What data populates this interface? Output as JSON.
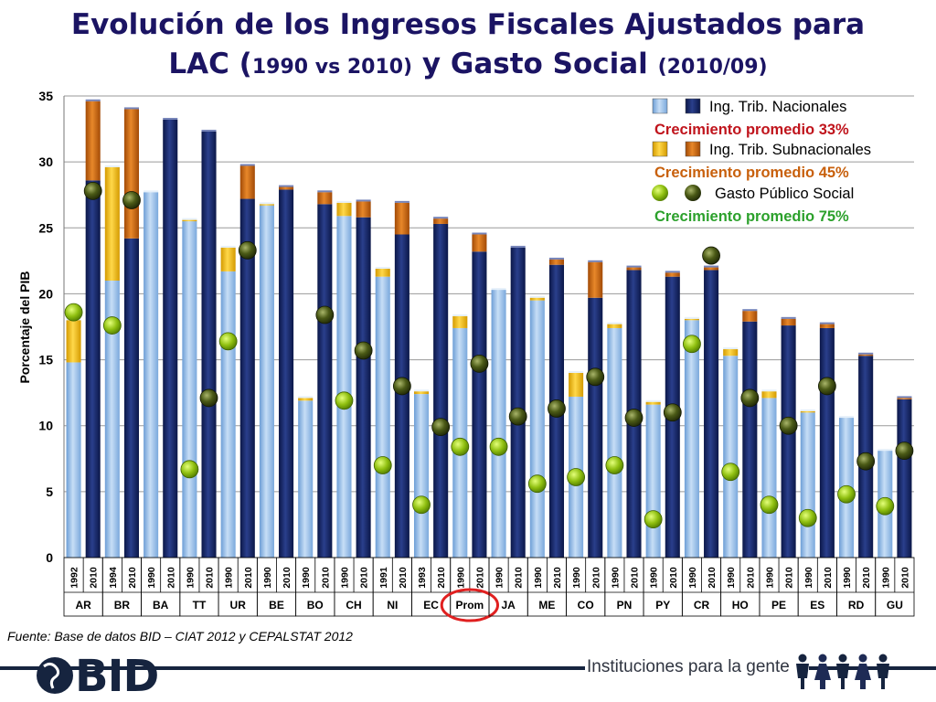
{
  "title": {
    "line1": "Evolución de los Ingresos Fiscales Ajustados para",
    "line2_a": "LAC (",
    "line2_b": "1990 vs 2010)",
    "line2_c": " y Gasto Social ",
    "line2_d": "(2010/09)"
  },
  "source": "Fuente: Base de datos BID – CIAT 2012 y CEPALSTAT 2012",
  "logo": "BID",
  "tagline": "Instituciones para la gente",
  "colors": {
    "nacional_early": "#9dc3ea",
    "nacional_2010": "#13235f",
    "subnacional_early": "#f0b400",
    "subnacional_2010": "#c8600c",
    "gasto_early": "#8fbf10",
    "gasto_2010": "#4b5a16",
    "highlight": "#e02020",
    "grid": "#9a9a9a",
    "footer": "#16243f"
  },
  "chart_data": {
    "type": "bar",
    "stacked": true,
    "ylabel": "Porcentaje del PIB",
    "ylim": [
      0,
      35
    ],
    "yticks": [
      0,
      5,
      10,
      15,
      20,
      25,
      30,
      35
    ],
    "grid": true,
    "legend_position": "top-right",
    "highlighted_group": "Prom",
    "groups": [
      {
        "name": "AR",
        "years": [
          "1992",
          "2010"
        ],
        "nacional": [
          14.8,
          28.6
        ],
        "subnacional": [
          3.2,
          6.0
        ],
        "gasto": [
          18.6,
          27.8
        ]
      },
      {
        "name": "BR",
        "years": [
          "1994",
          "2010"
        ],
        "nacional": [
          21.0,
          24.2
        ],
        "subnacional": [
          8.6,
          9.8
        ],
        "gasto": [
          17.6,
          27.1
        ]
      },
      {
        "name": "BA",
        "years": [
          "1990",
          "2010"
        ],
        "nacional": [
          27.7,
          33.2
        ],
        "subnacional": [
          0,
          0
        ],
        "gasto": [
          null,
          null
        ]
      },
      {
        "name": "TT",
        "years": [
          "1990",
          "2010"
        ],
        "nacional": [
          25.5,
          32.3
        ],
        "subnacional": [
          0.1,
          0
        ],
        "gasto": [
          6.7,
          12.1
        ]
      },
      {
        "name": "UR",
        "years": [
          "1990",
          "2010"
        ],
        "nacional": [
          21.7,
          27.2
        ],
        "subnacional": [
          1.8,
          2.5
        ],
        "gasto": [
          16.4,
          23.3
        ]
      },
      {
        "name": "BE",
        "years": [
          "1990",
          "2010"
        ],
        "nacional": [
          26.7,
          27.9
        ],
        "subnacional": [
          0.1,
          0.2
        ],
        "gasto": [
          null,
          null
        ]
      },
      {
        "name": "BO",
        "years": [
          "1990",
          "2010"
        ],
        "nacional": [
          11.9,
          26.8
        ],
        "subnacional": [
          0.2,
          0.9
        ],
        "gasto": [
          null,
          18.4
        ]
      },
      {
        "name": "CH",
        "years": [
          "1990",
          "2010"
        ],
        "nacional": [
          25.9,
          25.8
        ],
        "subnacional": [
          1.0,
          1.2
        ],
        "gasto": [
          11.9,
          15.7
        ]
      },
      {
        "name": "NI",
        "years": [
          "1991",
          "2010"
        ],
        "nacional": [
          21.3,
          24.5
        ],
        "subnacional": [
          0.6,
          2.4
        ],
        "gasto": [
          7.0,
          13.0
        ]
      },
      {
        "name": "EC",
        "years": [
          "1993",
          "2010"
        ],
        "nacional": [
          12.4,
          25.3
        ],
        "subnacional": [
          0.2,
          0.4
        ],
        "gasto": [
          4.0,
          9.9
        ]
      },
      {
        "name": "Prom",
        "years": [
          "1990",
          "2010"
        ],
        "nacional": [
          17.4,
          23.2
        ],
        "subnacional": [
          0.9,
          1.3
        ],
        "gasto": [
          8.4,
          14.7
        ]
      },
      {
        "name": "JA",
        "years": [
          "1990",
          "2010"
        ],
        "nacional": [
          20.3,
          23.5
        ],
        "subnacional": [
          0,
          0
        ],
        "gasto": [
          8.4,
          10.7
        ]
      },
      {
        "name": "ME",
        "years": [
          "1990",
          "2010"
        ],
        "nacional": [
          19.5,
          22.2
        ],
        "subnacional": [
          0.2,
          0.4
        ],
        "gasto": [
          5.6,
          11.3
        ]
      },
      {
        "name": "CO",
        "years": [
          "1990",
          "2010"
        ],
        "nacional": [
          12.2,
          19.7
        ],
        "subnacional": [
          1.8,
          2.7
        ],
        "gasto": [
          6.1,
          13.7
        ]
      },
      {
        "name": "PN",
        "years": [
          "1990",
          "2010"
        ],
        "nacional": [
          17.4,
          21.8
        ],
        "subnacional": [
          0.3,
          0.2
        ],
        "gasto": [
          7.0,
          10.6
        ]
      },
      {
        "name": "PY",
        "years": [
          "1990",
          "2010"
        ],
        "nacional": [
          11.6,
          21.3
        ],
        "subnacional": [
          0.2,
          0.3
        ],
        "gasto": [
          2.9,
          11.0
        ]
      },
      {
        "name": "CR",
        "years": [
          "1990",
          "2010"
        ],
        "nacional": [
          18.0,
          21.8
        ],
        "subnacional": [
          0.1,
          0.2
        ],
        "gasto": [
          16.2,
          22.9
        ]
      },
      {
        "name": "HO",
        "years": [
          "1990",
          "2010"
        ],
        "nacional": [
          15.3,
          17.9
        ],
        "subnacional": [
          0.5,
          0.8
        ],
        "gasto": [
          6.5,
          12.1
        ]
      },
      {
        "name": "PE",
        "years": [
          "1990",
          "2010"
        ],
        "nacional": [
          12.1,
          17.6
        ],
        "subnacional": [
          0.5,
          0.5
        ],
        "gasto": [
          4.0,
          10.0
        ]
      },
      {
        "name": "ES",
        "years": [
          "1990",
          "2010"
        ],
        "nacional": [
          11.0,
          17.4
        ],
        "subnacional": [
          0.1,
          0.3
        ],
        "gasto": [
          3.0,
          13.0
        ]
      },
      {
        "name": "RD",
        "years": [
          "1990",
          "2010"
        ],
        "nacional": [
          10.6,
          15.3
        ],
        "subnacional": [
          0,
          0.1
        ],
        "gasto": [
          4.8,
          7.3
        ]
      },
      {
        "name": "GU",
        "years": [
          "1990",
          "2010"
        ],
        "nacional": [
          8.1,
          12.0
        ],
        "subnacional": [
          0,
          0.1
        ],
        "gasto": [
          3.9,
          8.1
        ]
      }
    ],
    "legend": [
      {
        "label": "Ing. Trib. Nacionales",
        "sub": "Crecimiento promedio 33%",
        "sub_color": "#c0141c"
      },
      {
        "label": "Ing. Trib. Subnacionales",
        "sub": "Crecimiento promedio 45%",
        "sub_color": "#c8600c"
      },
      {
        "label": "Gasto Público Social",
        "sub": "Crecimiento promedio 75%",
        "sub_color": "#2ca12c"
      }
    ]
  }
}
